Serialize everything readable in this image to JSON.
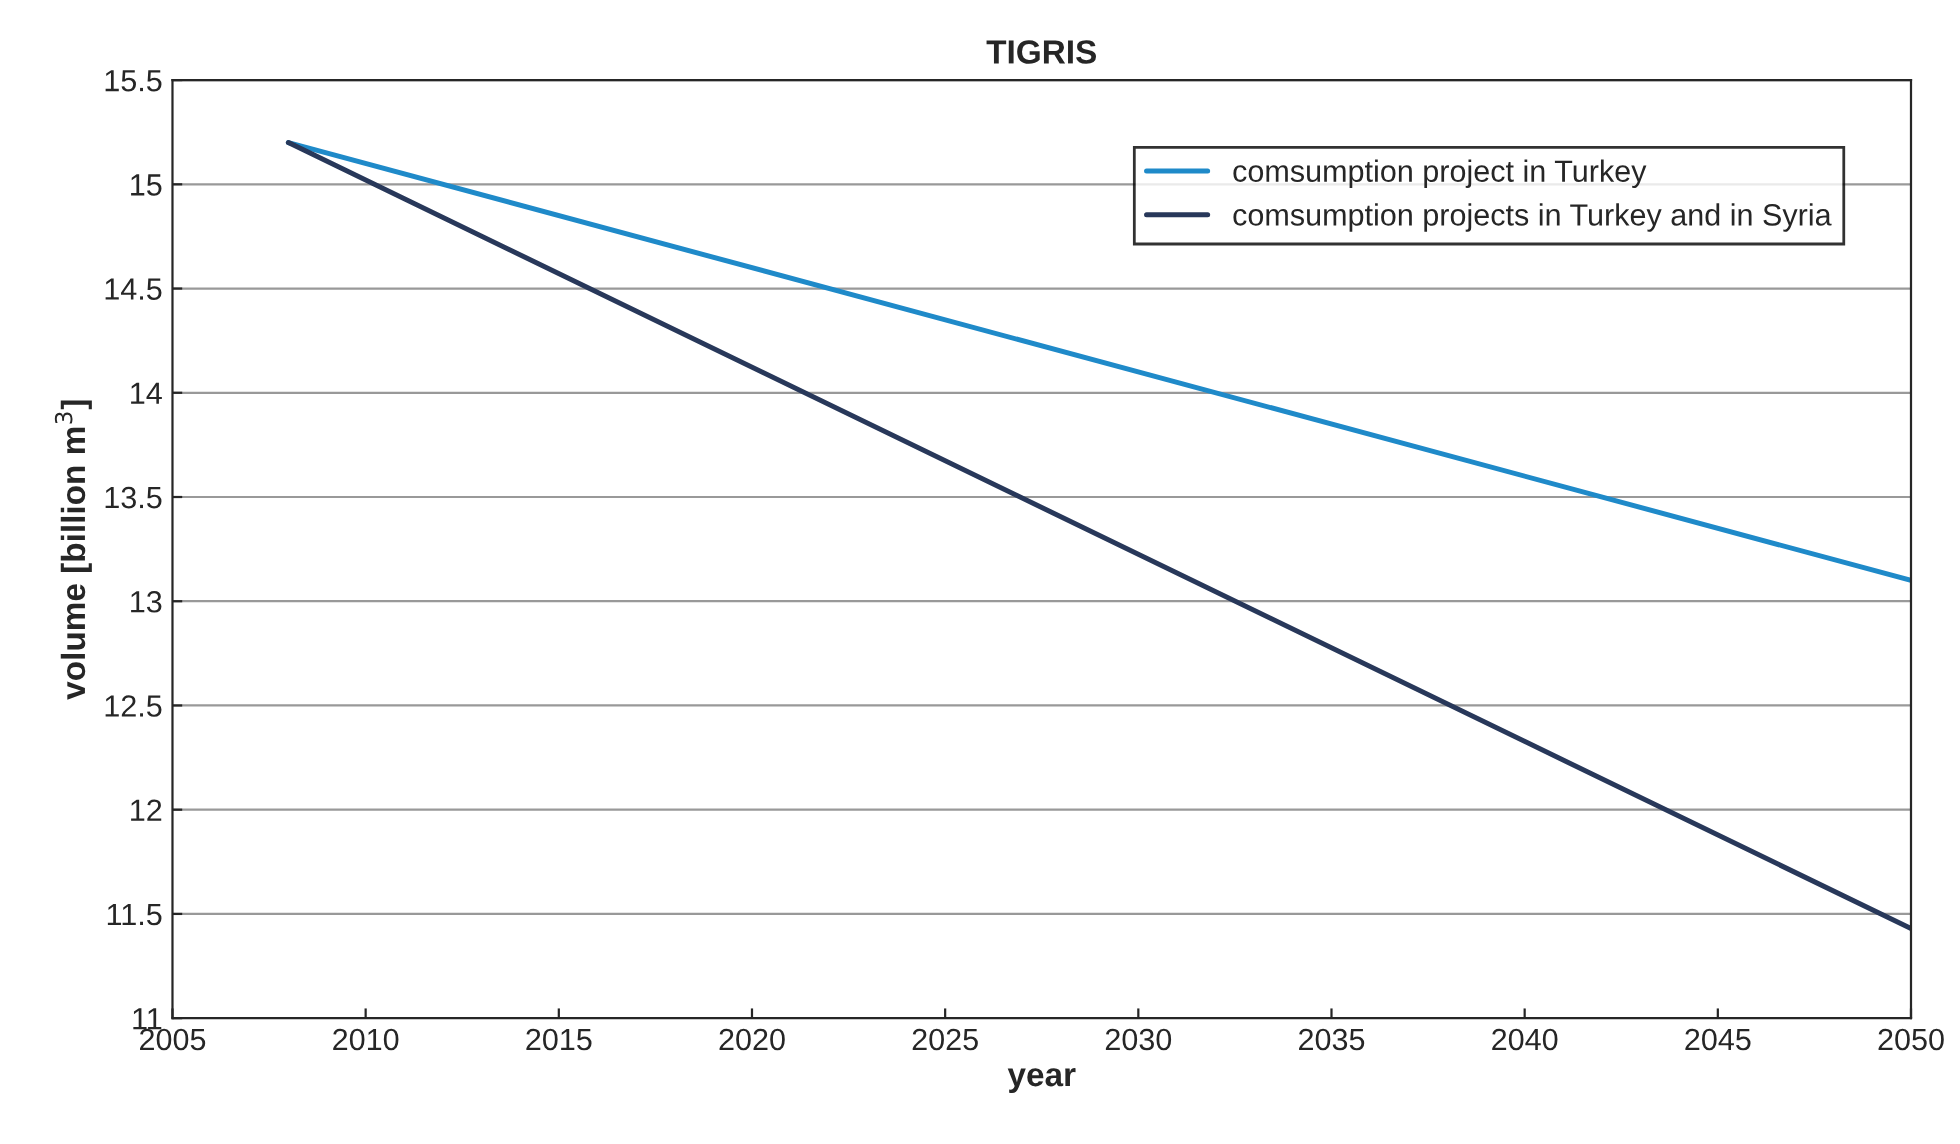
{
  "chart_data": {
    "type": "line",
    "title": "TIGRIS",
    "xlabel": "year",
    "ylabel": "volume [billion m$^{3}$]",
    "x": [
      2008,
      2050
    ],
    "series": [
      {
        "name": "comsumption project in Turkey",
        "color": "#1f8ac9",
        "values": [
          15.2,
          13.1
        ]
      },
      {
        "name": "comsumption projects in Turkey and in Syria",
        "color": "#28385a",
        "values": [
          15.2,
          11.43
        ]
      }
    ],
    "xlim": [
      2005,
      2050
    ],
    "xticks": [
      2005,
      2010,
      2015,
      2020,
      2025,
      2030,
      2035,
      2040,
      2045,
      2050
    ],
    "ylim": [
      11,
      15.5
    ],
    "yticks": [
      11,
      11.5,
      12,
      12.5,
      13,
      13.5,
      14,
      14.5,
      15,
      15.5
    ],
    "grid": "y",
    "legend": "top right",
    "marker": "none",
    "line_style": "solid"
  }
}
